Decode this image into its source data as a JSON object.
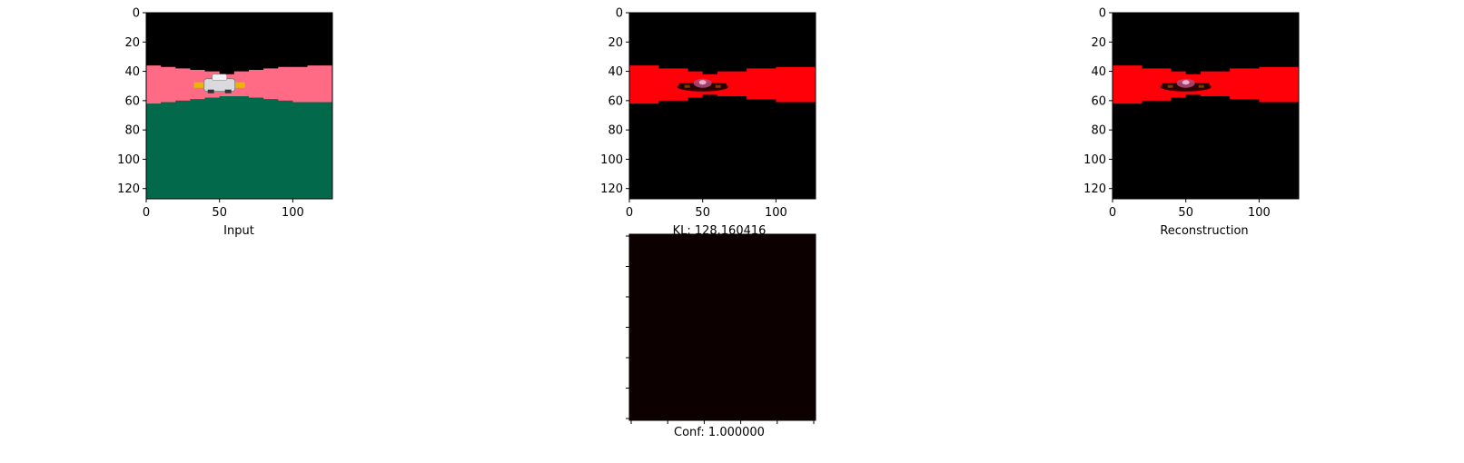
{
  "figure": {
    "background": "#ffffff"
  },
  "colors": {
    "sky": "#000000",
    "road_input": "#ff6b85",
    "grass_input": "#02694b",
    "road_recon": "#ff0008",
    "heatmap_fill": "#0d0000",
    "car_body": "#d9d9de",
    "car_wing": "#e8b800",
    "axis": "#000000"
  },
  "chart_data": [
    {
      "type": "image",
      "name": "input",
      "xlabel": "Input",
      "image_size": [
        128,
        128
      ],
      "xlim": [
        0,
        127
      ],
      "ylim": [
        127,
        0
      ],
      "xticks": [
        0,
        50,
        100
      ],
      "yticks": [
        0,
        20,
        40,
        60,
        80,
        100,
        120
      ],
      "road_top_edge": [
        [
          0,
          36
        ],
        [
          10,
          37
        ],
        [
          20,
          38
        ],
        [
          30,
          39
        ],
        [
          40,
          40
        ],
        [
          50,
          42
        ],
        [
          60,
          40
        ],
        [
          70,
          39
        ],
        [
          80,
          38
        ],
        [
          90,
          37
        ],
        [
          100,
          37
        ],
        [
          110,
          36
        ],
        [
          127,
          36
        ]
      ],
      "road_bottom_edge": [
        [
          0,
          62
        ],
        [
          10,
          61
        ],
        [
          20,
          60
        ],
        [
          30,
          59
        ],
        [
          40,
          58
        ],
        [
          50,
          57
        ],
        [
          60,
          57
        ],
        [
          70,
          58
        ],
        [
          80,
          59
        ],
        [
          90,
          60
        ],
        [
          100,
          61
        ],
        [
          110,
          61
        ],
        [
          127,
          62
        ]
      ]
    },
    {
      "type": "image",
      "name": "kl-map",
      "xlabel": "KL: 128.160416",
      "image_size": [
        128,
        128
      ],
      "xlim": [
        0,
        127
      ],
      "ylim": [
        127,
        0
      ],
      "xticks": [
        0,
        50,
        100
      ],
      "yticks": [
        0,
        20,
        40,
        60,
        80,
        100,
        120
      ],
      "road_top_edge": [
        [
          0,
          36
        ],
        [
          20,
          38
        ],
        [
          40,
          40
        ],
        [
          50,
          42
        ],
        [
          60,
          40
        ],
        [
          80,
          38
        ],
        [
          100,
          37
        ],
        [
          127,
          36
        ]
      ],
      "road_bottom_edge": [
        [
          0,
          62
        ],
        [
          20,
          60
        ],
        [
          40,
          58
        ],
        [
          50,
          56
        ],
        [
          60,
          57
        ],
        [
          80,
          59
        ],
        [
          100,
          61
        ],
        [
          127,
          62
        ]
      ]
    },
    {
      "type": "image",
      "name": "reconstruction",
      "xlabel": "Reconstruction",
      "image_size": [
        128,
        128
      ],
      "xlim": [
        0,
        127
      ],
      "ylim": [
        127,
        0
      ],
      "xticks": [
        0,
        50,
        100
      ],
      "yticks": [
        0,
        20,
        40,
        60,
        80,
        100,
        120
      ],
      "road_top_edge": [
        [
          0,
          36
        ],
        [
          20,
          38
        ],
        [
          40,
          40
        ],
        [
          50,
          42
        ],
        [
          60,
          40
        ],
        [
          80,
          38
        ],
        [
          100,
          37
        ],
        [
          127,
          36
        ]
      ],
      "road_bottom_edge": [
        [
          0,
          62
        ],
        [
          20,
          60
        ],
        [
          40,
          58
        ],
        [
          50,
          56
        ],
        [
          60,
          57
        ],
        [
          80,
          59
        ],
        [
          100,
          61
        ],
        [
          127,
          62
        ]
      ]
    },
    {
      "type": "heatmap",
      "name": "confidence",
      "xlabel": "Conf: 1.000000",
      "uniform_value": 1.0,
      "n_xticks": 6,
      "n_yticks": 7,
      "tick_labels_visible": false
    }
  ]
}
